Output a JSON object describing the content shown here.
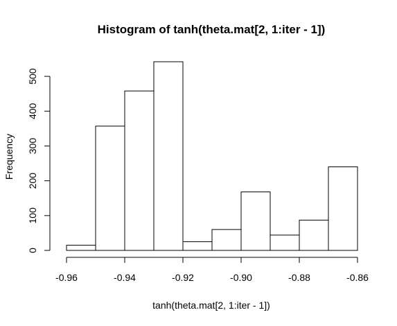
{
  "chart_data": {
    "type": "bar",
    "title": "Histogram of tanh(theta.mat[2, 1:iter - 1])",
    "xlabel": "tanh(theta.mat[2, 1:iter - 1])",
    "ylabel": "Frequency",
    "bin_edges": [
      -0.96,
      -0.95,
      -0.94,
      -0.93,
      -0.92,
      -0.91,
      -0.9,
      -0.89,
      -0.88,
      -0.87,
      -0.86
    ],
    "values": [
      15,
      357,
      458,
      542,
      25,
      60,
      168,
      44,
      87,
      240
    ],
    "xlim": [
      -0.96,
      -0.86
    ],
    "ylim": [
      0,
      542
    ],
    "x_ticks": [
      -0.96,
      -0.94,
      -0.92,
      -0.9,
      -0.88,
      -0.86
    ],
    "x_tick_labels": [
      "-0.96",
      "-0.94",
      "-0.92",
      "-0.90",
      "-0.88",
      "-0.86"
    ],
    "y_ticks": [
      0,
      100,
      200,
      300,
      400,
      500
    ],
    "y_tick_labels": [
      "0",
      "100",
      "200",
      "300",
      "400",
      "500"
    ],
    "bar_fill": "#ffffff",
    "bar_stroke": "#000000",
    "grid": false,
    "legend": "none"
  }
}
